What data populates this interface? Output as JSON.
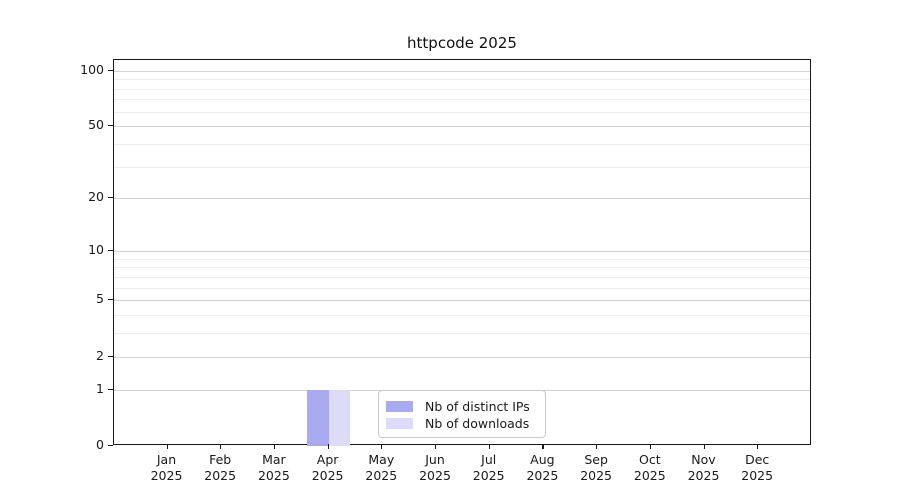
{
  "title": "httpcode 2025",
  "chart_data": {
    "type": "bar",
    "title": "httpcode 2025",
    "categories": [
      "Jan",
      "Feb",
      "Mar",
      "Apr",
      "May",
      "Jun",
      "Jul",
      "Aug",
      "Sep",
      "Oct",
      "Nov",
      "Dec"
    ],
    "x_year": "2025",
    "series": [
      {
        "name": "Nb of distinct IPs",
        "color": "#aaaaf0",
        "values": [
          0,
          0,
          0,
          1,
          0,
          0,
          0,
          0,
          0,
          0,
          0,
          0
        ]
      },
      {
        "name": "Nb of downloads",
        "color": "#dcdcf8",
        "values": [
          0,
          0,
          0,
          1,
          0,
          0,
          0,
          0,
          0,
          0,
          0,
          0
        ]
      }
    ],
    "y_scale": "log1p",
    "ylim": [
      0,
      114
    ],
    "y_major_ticks": [
      100,
      50,
      20,
      10,
      5,
      2,
      1,
      0
    ],
    "y_minor_gridlines": [
      3,
      4,
      6,
      7,
      8,
      9,
      30,
      40,
      60,
      70,
      80,
      90
    ],
    "grid": true,
    "legend_position": "inside-bottom-center",
    "xlabel": "",
    "ylabel": ""
  },
  "colors": {
    "axis": "#1a1a1a",
    "grid_major": "#d2d2d2",
    "grid_minor": "#ededed",
    "legend_border": "#c9c9c9",
    "background": "#ffffff"
  }
}
